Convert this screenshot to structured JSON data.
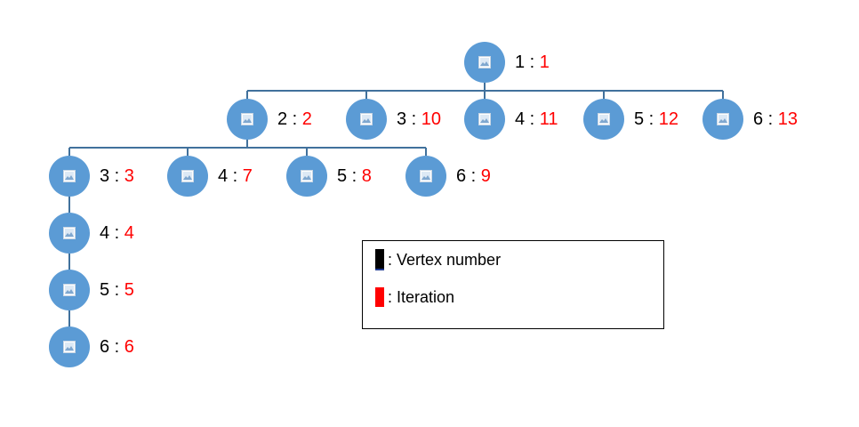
{
  "colors": {
    "node_fill": "#5b9bd5",
    "edge": "#41719c",
    "vertex_text": "#000000",
    "iteration_text": "#ff0000"
  },
  "icons": {
    "node": "picture-placeholder-icon"
  },
  "separator": ":",
  "nodes": [
    {
      "id": "n1",
      "vertex": "1",
      "iteration": "1"
    },
    {
      "id": "n2",
      "vertex": "2",
      "iteration": "2"
    },
    {
      "id": "n3",
      "vertex": "3",
      "iteration": "10"
    },
    {
      "id": "n4",
      "vertex": "4",
      "iteration": "11"
    },
    {
      "id": "n5",
      "vertex": "5",
      "iteration": "12"
    },
    {
      "id": "n6",
      "vertex": "6",
      "iteration": "13"
    },
    {
      "id": "n7",
      "vertex": "3",
      "iteration": "3"
    },
    {
      "id": "n8",
      "vertex": "4",
      "iteration": "7"
    },
    {
      "id": "n9",
      "vertex": "5",
      "iteration": "8"
    },
    {
      "id": "n10",
      "vertex": "6",
      "iteration": "9"
    },
    {
      "id": "n11",
      "vertex": "4",
      "iteration": "4"
    },
    {
      "id": "n12",
      "vertex": "5",
      "iteration": "5"
    },
    {
      "id": "n13",
      "vertex": "6",
      "iteration": "6"
    }
  ],
  "edges": [
    [
      "n1",
      "n2"
    ],
    [
      "n1",
      "n3"
    ],
    [
      "n1",
      "n4"
    ],
    [
      "n1",
      "n5"
    ],
    [
      "n1",
      "n6"
    ],
    [
      "n2",
      "n7"
    ],
    [
      "n2",
      "n8"
    ],
    [
      "n2",
      "n9"
    ],
    [
      "n2",
      "n10"
    ],
    [
      "n7",
      "n11"
    ],
    [
      "n11",
      "n12"
    ],
    [
      "n12",
      "n13"
    ]
  ],
  "legend": {
    "vertex_label": ": Vertex number",
    "iteration_label": ": Iteration",
    "vertex_color": "#000000",
    "iteration_color": "#ff0000"
  }
}
